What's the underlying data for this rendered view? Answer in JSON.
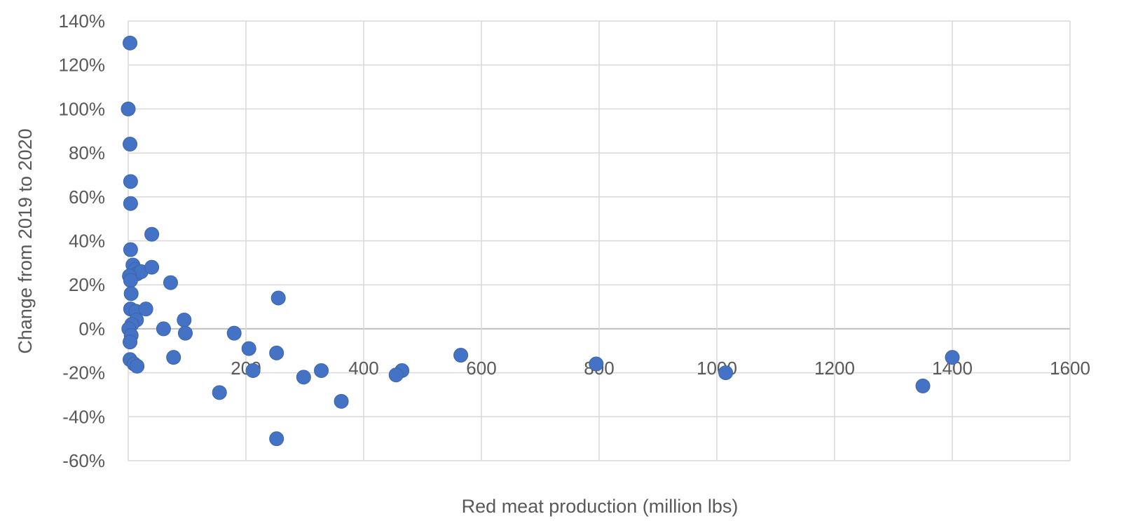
{
  "chart_data": {
    "type": "scatter",
    "xlabel": "Red meat production (million lbs)",
    "ylabel": "Change from 2019 to 2020",
    "xlim": [
      0,
      1600
    ],
    "ylim": [
      -60,
      140
    ],
    "x_ticks": [
      200,
      400,
      600,
      800,
      1000,
      1200,
      1400,
      1600
    ],
    "x_tick_labels": [
      "200",
      "400",
      "600",
      "800",
      "1000",
      "1200",
      "1400",
      "1600"
    ],
    "y_ticks": [
      -60,
      -40,
      -20,
      0,
      20,
      40,
      60,
      80,
      100,
      120,
      140
    ],
    "y_tick_labels": [
      "-60%",
      "-40%",
      "-20%",
      "0%",
      "20%",
      "40%",
      "60%",
      "80%",
      "100%",
      "120%",
      "140%"
    ],
    "grid": true,
    "color": "#4472c4",
    "points": [
      {
        "x": 3,
        "y": 130
      },
      {
        "x": 0,
        "y": 100
      },
      {
        "x": 3,
        "y": 84
      },
      {
        "x": 4,
        "y": 67
      },
      {
        "x": 4,
        "y": 57
      },
      {
        "x": 4,
        "y": 36
      },
      {
        "x": 40,
        "y": 43
      },
      {
        "x": 8,
        "y": 29
      },
      {
        "x": 12,
        "y": 27
      },
      {
        "x": 15,
        "y": 25
      },
      {
        "x": 22,
        "y": 26
      },
      {
        "x": 40,
        "y": 28
      },
      {
        "x": 2,
        "y": 24
      },
      {
        "x": 4,
        "y": 22
      },
      {
        "x": 72,
        "y": 21
      },
      {
        "x": 5,
        "y": 16
      },
      {
        "x": 255,
        "y": 14
      },
      {
        "x": 4,
        "y": 9
      },
      {
        "x": 13,
        "y": 8
      },
      {
        "x": 30,
        "y": 9
      },
      {
        "x": 14,
        "y": 4
      },
      {
        "x": 95,
        "y": 4
      },
      {
        "x": 6,
        "y": 2
      },
      {
        "x": 1,
        "y": 0
      },
      {
        "x": 60,
        "y": 0
      },
      {
        "x": 97,
        "y": -2
      },
      {
        "x": 180,
        "y": -2
      },
      {
        "x": 5,
        "y": -3
      },
      {
        "x": 3,
        "y": -6
      },
      {
        "x": 205,
        "y": -9
      },
      {
        "x": 252,
        "y": -11
      },
      {
        "x": 3,
        "y": -14
      },
      {
        "x": 77,
        "y": -13
      },
      {
        "x": 565,
        "y": -12
      },
      {
        "x": 1400,
        "y": -13
      },
      {
        "x": 10,
        "y": -16
      },
      {
        "x": 15,
        "y": -17
      },
      {
        "x": 795,
        "y": -16
      },
      {
        "x": 212,
        "y": -19
      },
      {
        "x": 328,
        "y": -19
      },
      {
        "x": 465,
        "y": -19
      },
      {
        "x": 455,
        "y": -21
      },
      {
        "x": 1015,
        "y": -20
      },
      {
        "x": 298,
        "y": -22
      },
      {
        "x": 1350,
        "y": -26
      },
      {
        "x": 155,
        "y": -29
      },
      {
        "x": 362,
        "y": -33
      },
      {
        "x": 252,
        "y": -50
      }
    ]
  }
}
